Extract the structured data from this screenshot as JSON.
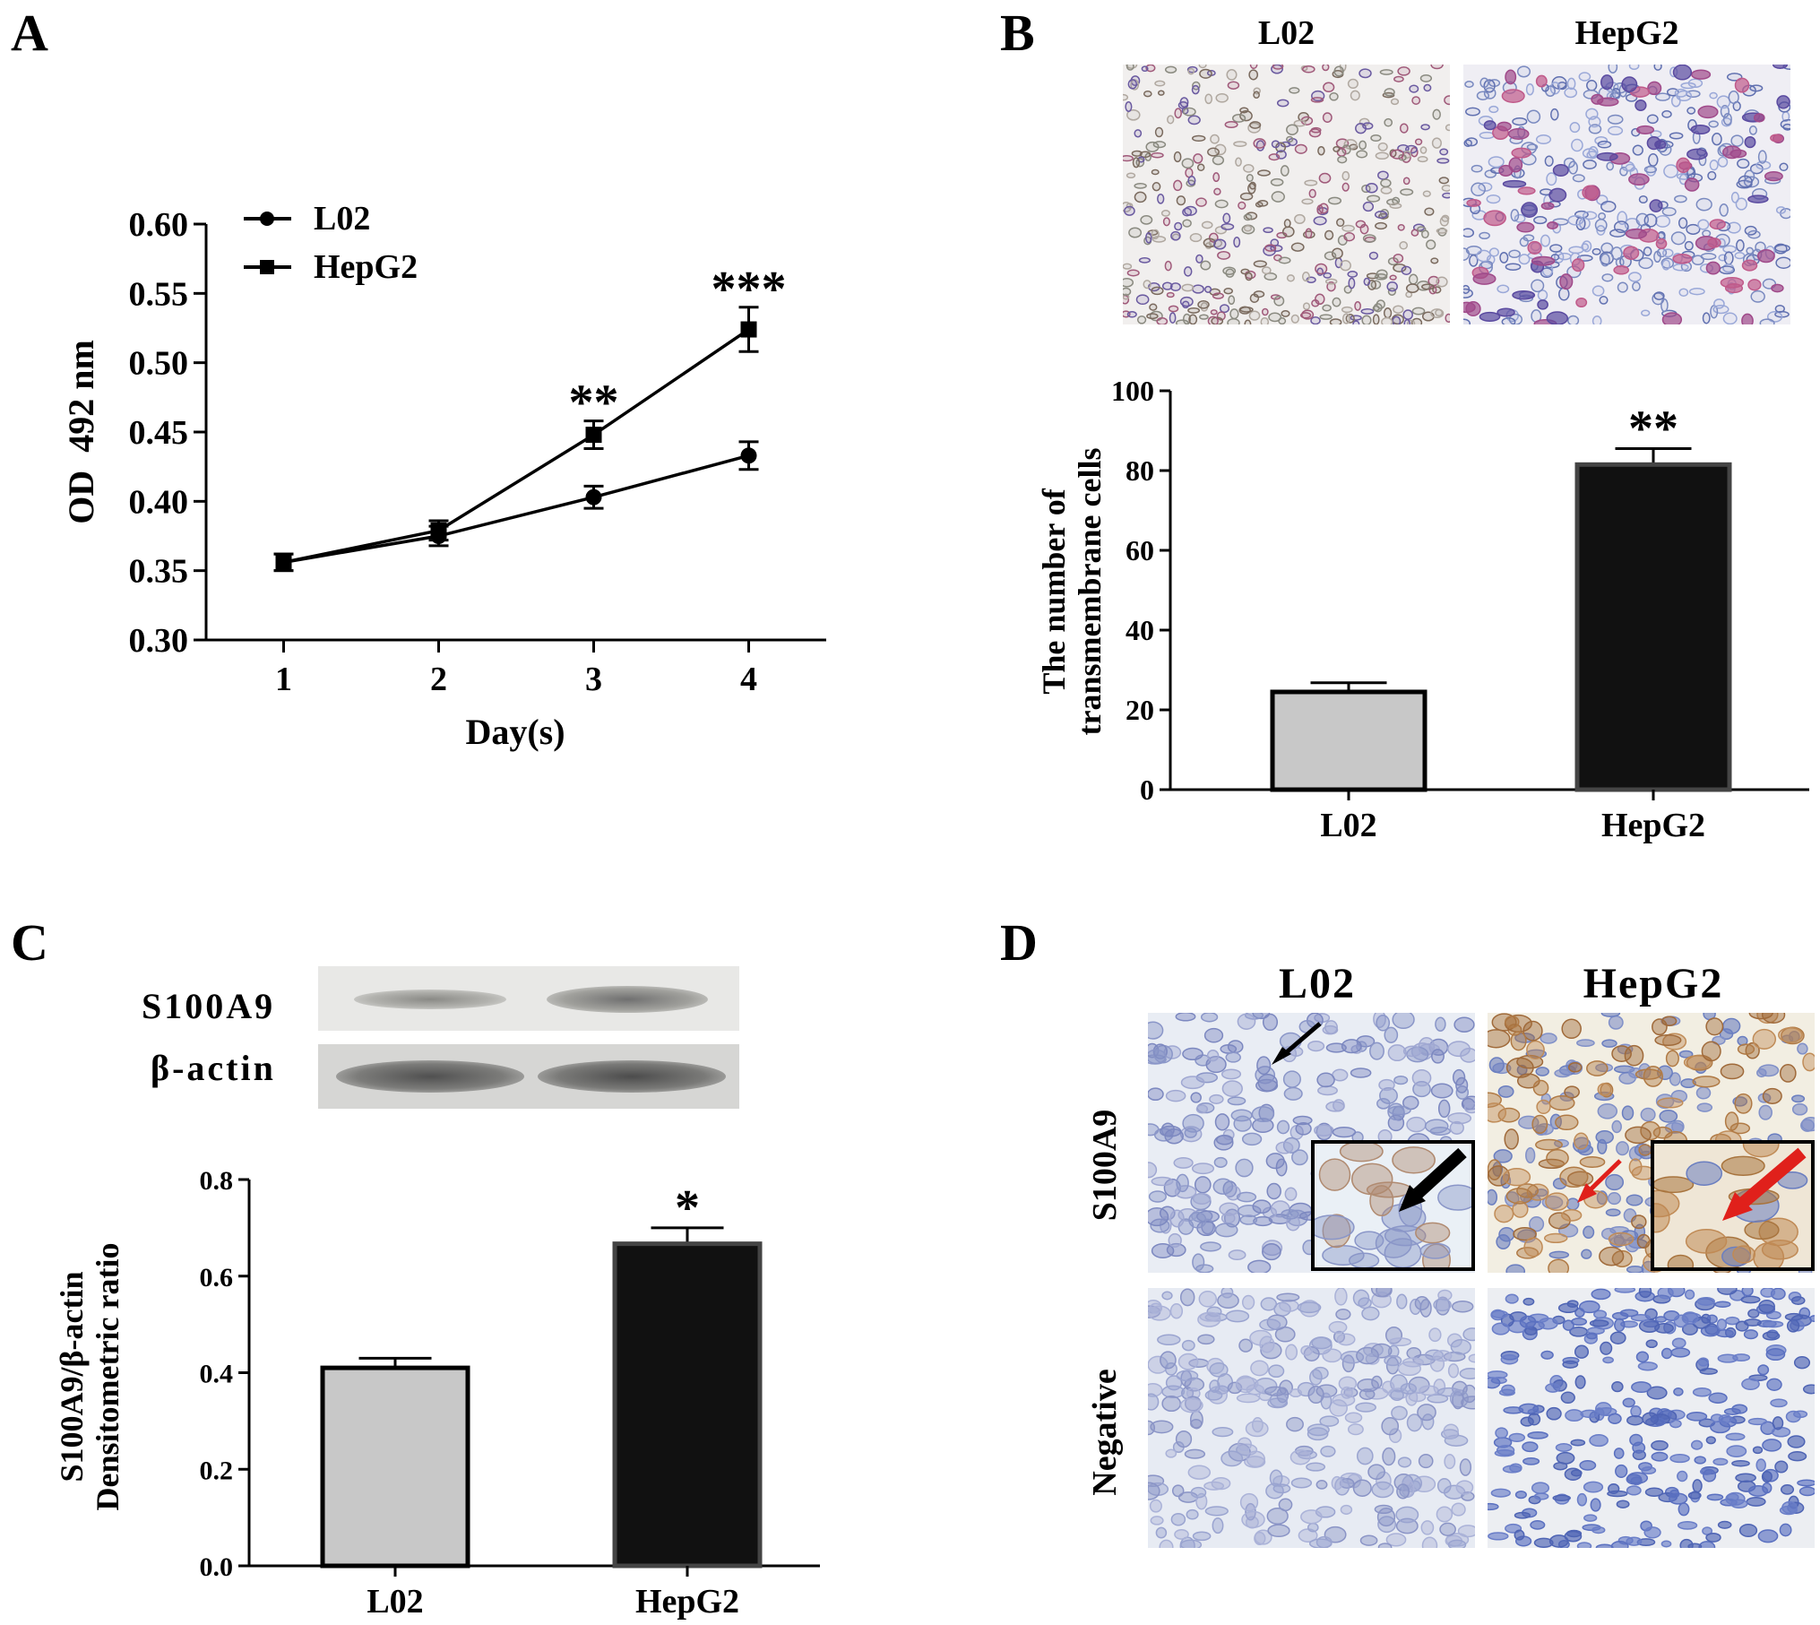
{
  "panels": {
    "A": "A",
    "B": "B",
    "C": "C",
    "D": "D"
  },
  "panel_a": {
    "legend": [
      "L02",
      "HepG2"
    ],
    "ylabel": "OD  492 nm",
    "xlabel": "Day(s)",
    "yticks": [
      "0.30",
      "0.35",
      "0.40",
      "0.45",
      "0.50",
      "0.55",
      "0.60"
    ],
    "xticks": [
      "1",
      "2",
      "3",
      "4"
    ],
    "stars": [
      {
        "day": 3,
        "label": "**"
      },
      {
        "day": 4,
        "label": "***"
      }
    ]
  },
  "panel_b": {
    "image_labels": [
      "L02",
      "HepG2"
    ],
    "ylabel_line1": "The number of",
    "ylabel_line2": "transmembrane cells",
    "yticks": [
      "0",
      "20",
      "40",
      "60",
      "80",
      "100"
    ],
    "categories": [
      "L02",
      "HepG2"
    ],
    "star": "**"
  },
  "panel_c": {
    "blot_labels": [
      "S100A9",
      "β-actin"
    ],
    "ylabel_line1": "S100A9/β-actin",
    "ylabel_line2": "Densitometric ratio",
    "yticks": [
      "0.0",
      "0.2",
      "0.4",
      "0.6",
      "0.8"
    ],
    "categories": [
      "L02",
      "HepG2"
    ],
    "star": "*"
  },
  "panel_d": {
    "col_labels": [
      "L02",
      "HepG2"
    ],
    "row_labels": [
      "S100A9",
      "Negative"
    ]
  },
  "colors": {
    "light_bar": "#c8c8c8",
    "dark_bar": "#111111",
    "arrow_red": "#e0201b",
    "stain_blue": "#6a7ec0",
    "stain_brown": "#b07a45"
  },
  "chart_data": [
    {
      "type": "line",
      "panel": "A",
      "x": [
        1,
        2,
        3,
        4
      ],
      "series": [
        {
          "name": "L02",
          "marker": "circle",
          "values": [
            0.356,
            0.375,
            0.403,
            0.433
          ],
          "errors": [
            0.006,
            0.007,
            0.008,
            0.01
          ]
        },
        {
          "name": "HepG2",
          "marker": "square",
          "values": [
            0.356,
            0.379,
            0.448,
            0.524
          ],
          "errors": [
            0.006,
            0.007,
            0.01,
            0.016
          ]
        }
      ],
      "xlabel": "Day(s)",
      "ylabel": "OD  492 nm",
      "ylim": [
        0.3,
        0.6
      ],
      "xlim": [
        0.5,
        4.5
      ],
      "legend": "top-left",
      "grid": false
    },
    {
      "type": "bar",
      "panel": "B",
      "categories": [
        "L02",
        "HepG2"
      ],
      "values": [
        24.5,
        81.5
      ],
      "errors": [
        2.3,
        4.0
      ],
      "ylabel": "The number of transmembrane cells",
      "ylim": [
        0,
        100
      ],
      "grid": false
    },
    {
      "type": "bar",
      "panel": "C",
      "categories": [
        "L02",
        "HepG2"
      ],
      "values": [
        0.41,
        0.667
      ],
      "errors": [
        0.02,
        0.033
      ],
      "ylabel": "S100A9/β-actin Densitometric ratio",
      "ylim": [
        0.0,
        0.8
      ],
      "grid": false
    }
  ]
}
